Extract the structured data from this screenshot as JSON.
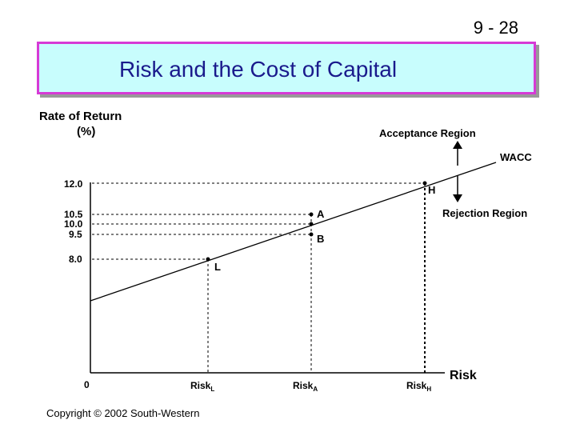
{
  "slide": {
    "number": "9 - 28",
    "title": "Risk and the Cost of Capital",
    "copyright": "Copyright © 2002 South-Western"
  },
  "chart_data": {
    "type": "line",
    "ylabel": [
      "Rate of Return",
      "(%)"
    ],
    "xlabel": "Risk",
    "origin_label": "0",
    "y_ticks": [
      "12.0",
      "10.5",
      "10.0",
      "9.5",
      "8.0"
    ],
    "x_ticks": [
      {
        "base": "Risk",
        "sub": "L"
      },
      {
        "base": "Risk",
        "sub": "A"
      },
      {
        "base": "Risk",
        "sub": "H"
      }
    ],
    "wacc_line": {
      "name": "WACC"
    },
    "points": [
      {
        "label": "L",
        "x": "Risk L",
        "y": 8.0
      },
      {
        "label": "A",
        "x": "Risk A",
        "y": 10.5
      },
      {
        "label": "B",
        "x": "Risk A",
        "y": 9.5
      },
      {
        "label": "H",
        "x": "Risk H",
        "y": 12.0
      }
    ],
    "annotations": {
      "acceptance": "Acceptance Region",
      "rejection": "Rejection Region"
    }
  }
}
